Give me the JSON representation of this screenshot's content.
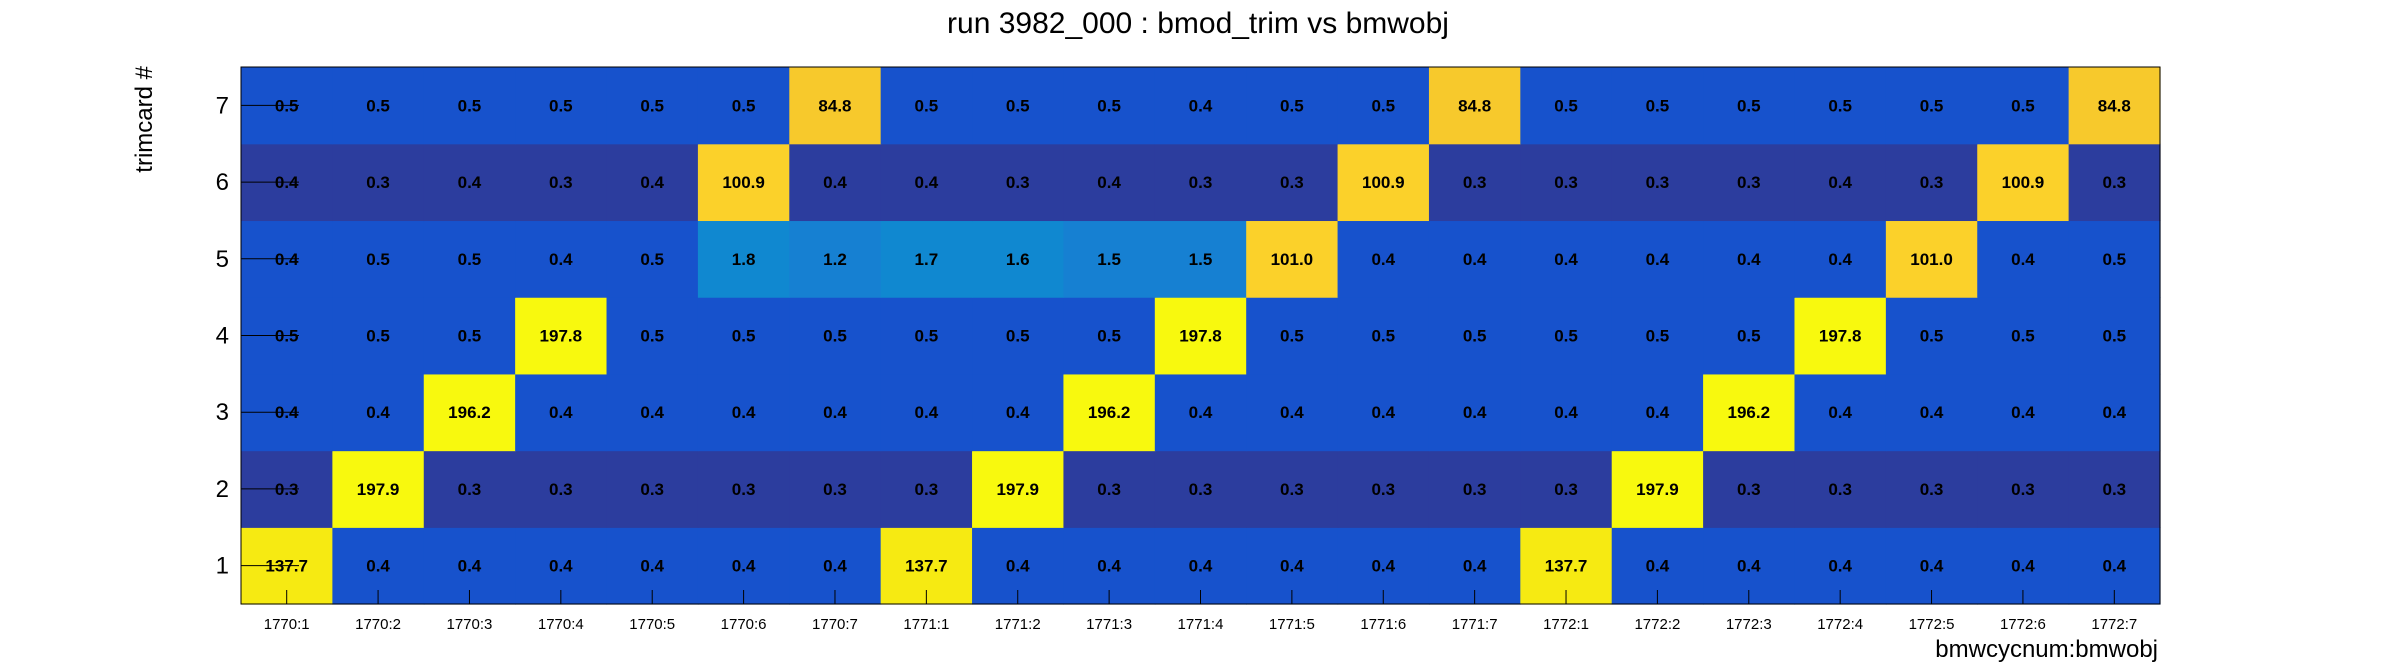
{
  "chart_data": {
    "type": "heatmap",
    "title": "run 3982_000 : bmod_trim vs bmwobj",
    "xlabel": "bmwcycnum:bmwobj",
    "ylabel": "trimcard #",
    "x_categories": [
      "1770:1",
      "1770:2",
      "1770:3",
      "1770:4",
      "1770:5",
      "1770:6",
      "1770:7",
      "1771:1",
      "1771:2",
      "1771:3",
      "1771:4",
      "1771:5",
      "1771:6",
      "1771:7",
      "1772:1",
      "1772:2",
      "1772:3",
      "1772:4",
      "1772:5",
      "1772:6",
      "1772:7"
    ],
    "y_categories": [
      "1",
      "2",
      "3",
      "4",
      "5",
      "6",
      "7"
    ],
    "values": [
      [
        "137.7",
        "0.4",
        "0.4",
        "0.4",
        "0.4",
        "0.4",
        "0.4",
        "137.7",
        "0.4",
        "0.4",
        "0.4",
        "0.4",
        "0.4",
        "0.4",
        "137.7",
        "0.4",
        "0.4",
        "0.4",
        "0.4",
        "0.4",
        "0.4"
      ],
      [
        "0.3",
        "197.9",
        "0.3",
        "0.3",
        "0.3",
        "0.3",
        "0.3",
        "0.3",
        "197.9",
        "0.3",
        "0.3",
        "0.3",
        "0.3",
        "0.3",
        "0.3",
        "197.9",
        "0.3",
        "0.3",
        "0.3",
        "0.3",
        "0.3"
      ],
      [
        "0.4",
        "0.4",
        "196.2",
        "0.4",
        "0.4",
        "0.4",
        "0.4",
        "0.4",
        "0.4",
        "196.2",
        "0.4",
        "0.4",
        "0.4",
        "0.4",
        "0.4",
        "0.4",
        "196.2",
        "0.4",
        "0.4",
        "0.4",
        "0.4"
      ],
      [
        "0.5",
        "0.5",
        "0.5",
        "197.8",
        "0.5",
        "0.5",
        "0.5",
        "0.5",
        "0.5",
        "0.5",
        "197.8",
        "0.5",
        "0.5",
        "0.5",
        "0.5",
        "0.5",
        "0.5",
        "197.8",
        "0.5",
        "0.5",
        "0.5"
      ],
      [
        "0.4",
        "0.5",
        "0.5",
        "0.4",
        "0.5",
        "1.8",
        "1.2",
        "1.7",
        "1.6",
        "1.5",
        "1.5",
        "101.0",
        "0.4",
        "0.4",
        "0.4",
        "0.4",
        "0.4",
        "0.4",
        "101.0",
        "0.4",
        "0.5"
      ],
      [
        "0.4",
        "0.3",
        "0.4",
        "0.3",
        "0.4",
        "100.9",
        "0.4",
        "0.4",
        "0.3",
        "0.4",
        "0.3",
        "0.3",
        "100.9",
        "0.3",
        "0.3",
        "0.3",
        "0.3",
        "0.4",
        "0.3",
        "100.9",
        "0.3"
      ],
      [
        "0.5",
        "0.5",
        "0.5",
        "0.5",
        "0.5",
        "0.5",
        "84.8",
        "0.5",
        "0.5",
        "0.5",
        "0.4",
        "0.5",
        "0.5",
        "84.8",
        "0.5",
        "0.5",
        "0.5",
        "0.5",
        "0.5",
        "0.5",
        "84.8"
      ]
    ],
    "colors": {
      "row_base_dark": "#2c3d9e",
      "row_base": "#1752cc",
      "low_mid": "#1088d0",
      "low_mid_alt": "#1680d2",
      "high_84": "#f7c92c",
      "high_100": "#fbd12a",
      "high_137": "#f6ea12",
      "high_196": "#f8f90e"
    }
  }
}
